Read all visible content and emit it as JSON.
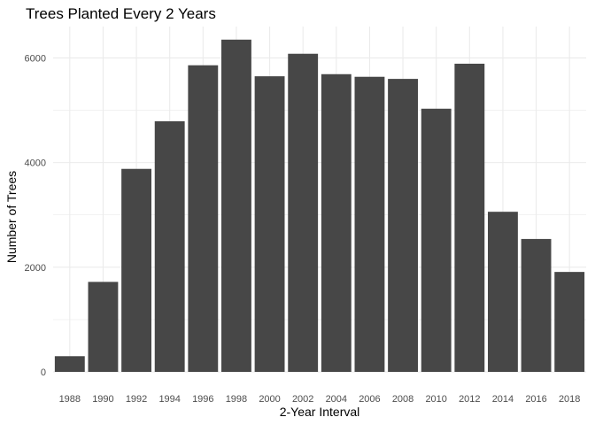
{
  "chart_data": {
    "type": "bar",
    "title": "Trees Planted Every 2 Years",
    "xlabel": "2-Year Interval",
    "ylabel": "Number of Trees",
    "categories": [
      "1988",
      "1990",
      "1992",
      "1994",
      "1996",
      "1998",
      "2000",
      "2002",
      "2004",
      "2006",
      "2008",
      "2010",
      "2012",
      "2014",
      "2016",
      "2018"
    ],
    "values": [
      300,
      1720,
      3880,
      4790,
      5860,
      6350,
      5650,
      6080,
      5690,
      5640,
      5600,
      5030,
      5890,
      3060,
      2540,
      1910
    ],
    "ylim": [
      0,
      6600
    ],
    "yticks": [
      0,
      2000,
      4000,
      6000
    ],
    "grid": true,
    "colors": {
      "bar": "#474747",
      "grid": "#ebebeb",
      "background": "#ffffff"
    }
  }
}
